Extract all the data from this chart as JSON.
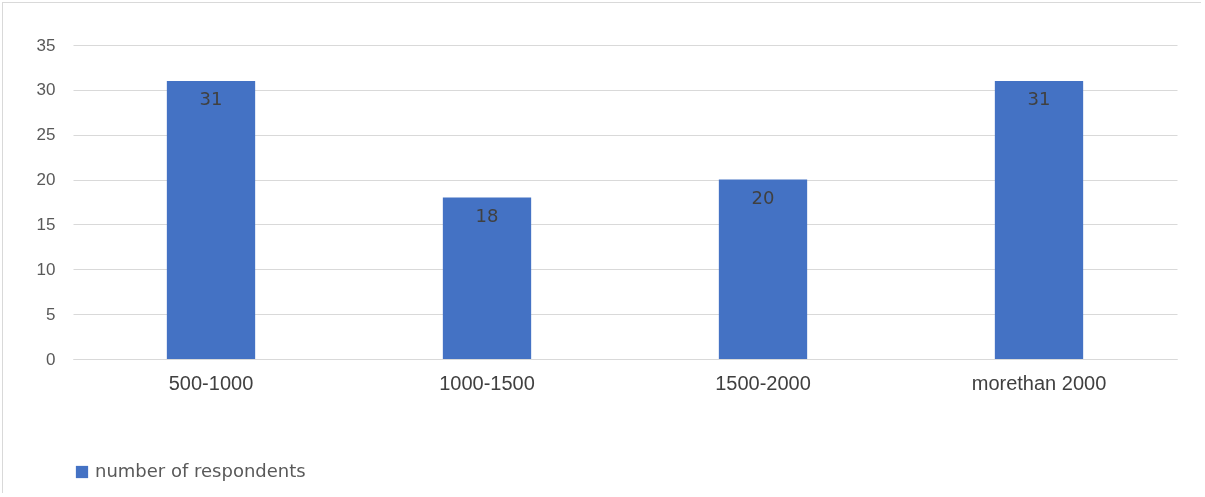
{
  "chart_data": {
    "type": "bar",
    "categories": [
      "500-1000",
      "1000-1500",
      "1500-2000",
      "morethan 2000"
    ],
    "series": [
      {
        "name": "number of respondents",
        "color": "#4472c4",
        "values": [
          31,
          18,
          20,
          31
        ]
      }
    ],
    "ylim": [
      0,
      35
    ],
    "yticks": [
      0,
      5,
      10,
      15,
      20,
      25,
      30,
      35
    ],
    "grid": "y",
    "legend": "bottom",
    "data_labels": true
  }
}
